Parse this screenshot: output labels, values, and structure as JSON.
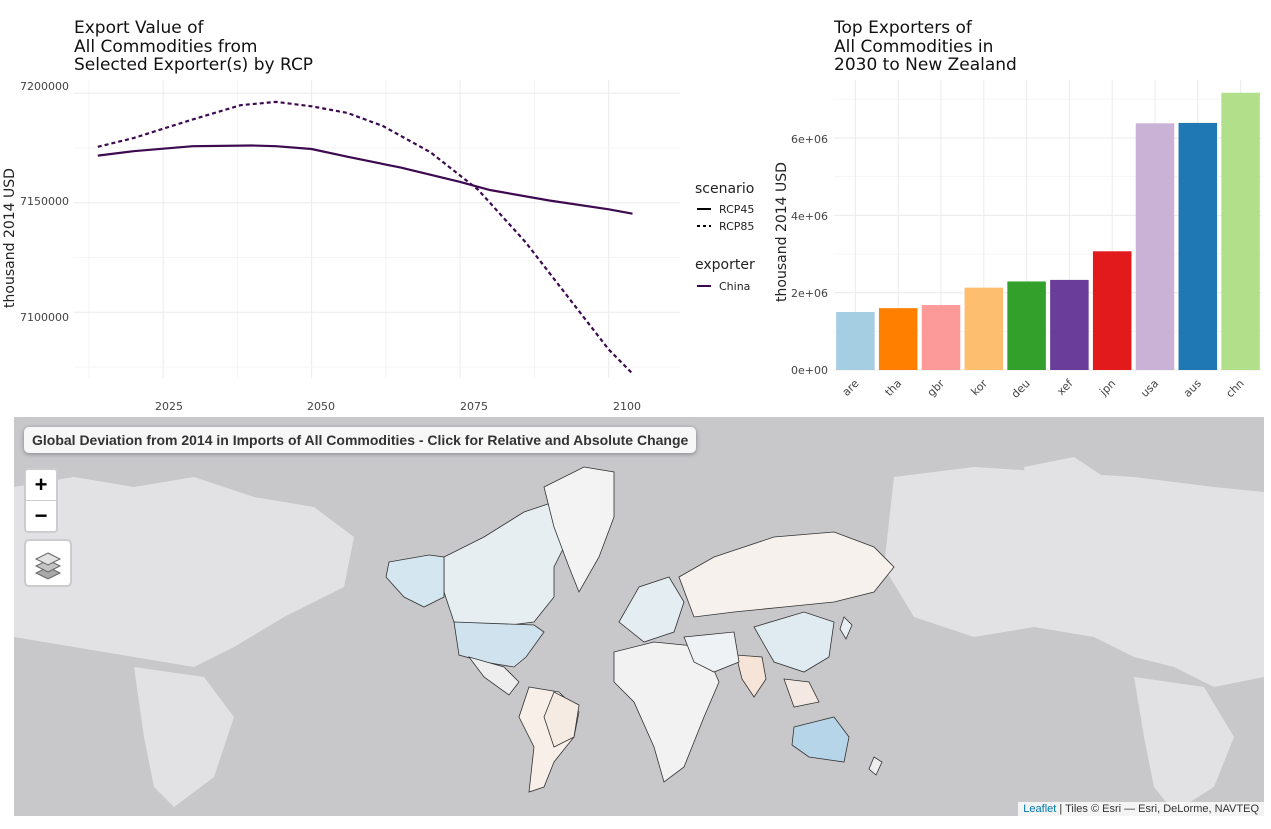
{
  "line_chart": {
    "title": "Export Value of\nAll Commodities from\nSelected Exporter(s) by RCP",
    "ylabel": "thousand 2014 USD",
    "yticks": [
      "7100000",
      "7150000",
      "7200000"
    ],
    "xticks": [
      "2025",
      "2050",
      "2075",
      "2100"
    ],
    "legend": {
      "scenario_title": "scenario",
      "scenario_items": [
        "RCP45",
        "RCP85"
      ],
      "exporter_title": "exporter",
      "exporter_items": [
        "China"
      ]
    }
  },
  "bar_chart": {
    "title": "Top Exporters of\nAll Commodities in\n2030 to New Zealand",
    "ylabel": "thousand 2014 USD",
    "yticks": [
      "0e+00",
      "2e+06",
      "4e+06",
      "6e+06"
    ]
  },
  "chart_data": [
    {
      "type": "line",
      "title": "Export Value of All Commodities from Selected Exporter(s) by RCP",
      "ylabel": "thousand 2014 USD",
      "xlim": [
        2010,
        2112
      ],
      "ylim": [
        7070000,
        7206000
      ],
      "series": [
        {
          "name": "RCP45",
          "color": "#3d0a4f",
          "x": [
            2014,
            2020,
            2030,
            2040,
            2044,
            2050,
            2056,
            2065,
            2075,
            2080,
            2090,
            2100,
            2104
          ],
          "y": [
            7171500,
            7173500,
            7175800,
            7176100,
            7175800,
            7174500,
            7171000,
            7166000,
            7159500,
            7155800,
            7151000,
            7147000,
            7145000
          ]
        },
        {
          "name": "RCP85",
          "color": "#3d0a4f",
          "x": [
            2014,
            2020,
            2030,
            2038,
            2044,
            2050,
            2056,
            2062,
            2070,
            2078,
            2086,
            2094,
            2100,
            2104
          ],
          "y": [
            7175500,
            7179500,
            7188000,
            7194500,
            7196000,
            7194000,
            7191000,
            7185000,
            7173000,
            7156000,
            7132000,
            7104000,
            7083000,
            7072000
          ]
        }
      ]
    },
    {
      "type": "bar",
      "title": "Top Exporters of All Commodities in 2030 to New Zealand",
      "ylabel": "thousand 2014 USD",
      "ylim": [
        0,
        7500000
      ],
      "categories": [
        "are",
        "tha",
        "gbr",
        "kor",
        "deu",
        "xef",
        "jpn",
        "usa",
        "aus",
        "chn"
      ],
      "values": [
        1500000,
        1600000,
        1680000,
        2130000,
        2290000,
        2330000,
        3070000,
        6380000,
        6390000,
        7170000
      ],
      "colors": [
        "#a6cee3",
        "#ff7f00",
        "#fb9a99",
        "#fdbf6f",
        "#33a02c",
        "#6a3d9a",
        "#e31a1c",
        "#cab2d6",
        "#1f78b4",
        "#b2df8a"
      ]
    }
  ],
  "map": {
    "title": "Global Deviation from 2014 in Imports of All Commodities - Click for Relative and Absolute Change",
    "zoom_in": "+",
    "zoom_out": "−",
    "attribution_link": "Leaflet",
    "attribution_text": " | Tiles © Esri — Esri, DeLorme, NAVTEQ"
  }
}
